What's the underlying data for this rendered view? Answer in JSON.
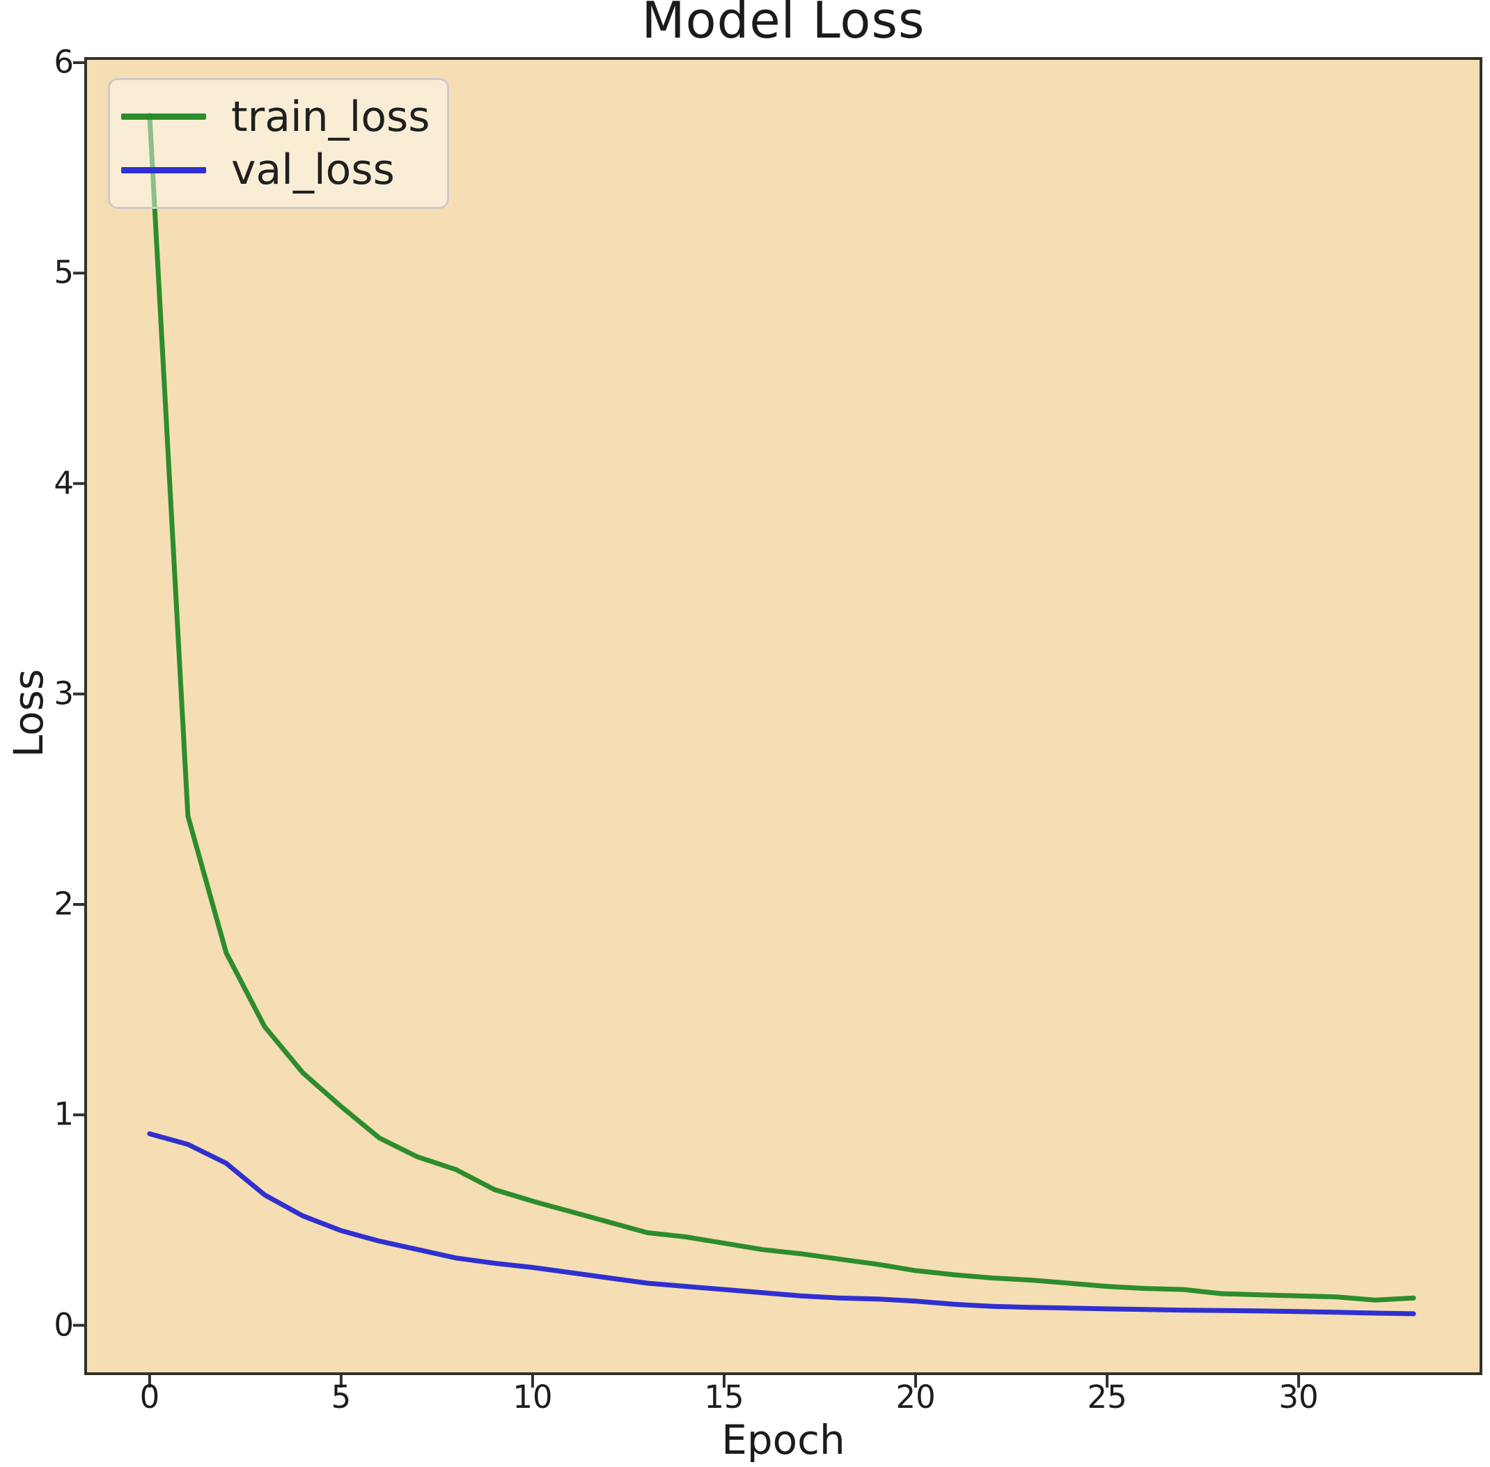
{
  "header": {
    "title": "Model Loss"
  },
  "axes": {
    "xlabel": "Epoch",
    "ylabel": "Loss"
  },
  "legend": {
    "items": [
      {
        "label": "train_loss",
        "color": "#2d8c2d"
      },
      {
        "label": "val_loss",
        "color": "#3030d0"
      }
    ]
  },
  "chart_data": {
    "type": "line",
    "title": "Model Loss",
    "xlabel": "Epoch",
    "ylabel": "Loss",
    "x": [
      0,
      1,
      2,
      3,
      4,
      5,
      6,
      7,
      8,
      9,
      10,
      11,
      12,
      13,
      14,
      15,
      16,
      17,
      18,
      19,
      20,
      21,
      22,
      23,
      24,
      25,
      26,
      27,
      28,
      29,
      30,
      31,
      32,
      33
    ],
    "series": [
      {
        "name": "train_loss",
        "color": "#2d8c2d",
        "values": [
          5.75,
          2.42,
          1.77,
          1.42,
          1.2,
          1.04,
          0.89,
          0.8,
          0.74,
          0.645,
          0.59,
          0.54,
          0.49,
          0.44,
          0.42,
          0.39,
          0.36,
          0.34,
          0.315,
          0.29,
          0.26,
          0.24,
          0.225,
          0.215,
          0.2,
          0.185,
          0.175,
          0.17,
          0.15,
          0.145,
          0.14,
          0.135,
          0.12,
          0.13
        ]
      },
      {
        "name": "val_loss",
        "color": "#3030d0",
        "values": [
          0.91,
          0.86,
          0.77,
          0.62,
          0.52,
          0.45,
          0.4,
          0.36,
          0.32,
          0.295,
          0.275,
          0.25,
          0.225,
          0.2,
          0.185,
          0.17,
          0.155,
          0.14,
          0.13,
          0.125,
          0.115,
          0.1,
          0.09,
          0.085,
          0.082,
          0.078,
          0.075,
          0.072,
          0.07,
          0.068,
          0.065,
          0.062,
          0.058,
          0.055
        ]
      }
    ],
    "x_ticks": [
      0,
      5,
      10,
      15,
      20,
      25,
      30
    ],
    "y_ticks": [
      0,
      1,
      2,
      3,
      4,
      5,
      6
    ],
    "xlim": [
      -1.67,
      34.76
    ],
    "ylim": [
      -0.23,
      6.02
    ],
    "grid": false,
    "legend_position": "upper left",
    "plot_background": "#f5deb3",
    "figure_background": "#ffffff",
    "spine_color": "#33302b",
    "tick_color": "#33302b",
    "text_color": "#1c1c1c",
    "line_width": 7
  }
}
